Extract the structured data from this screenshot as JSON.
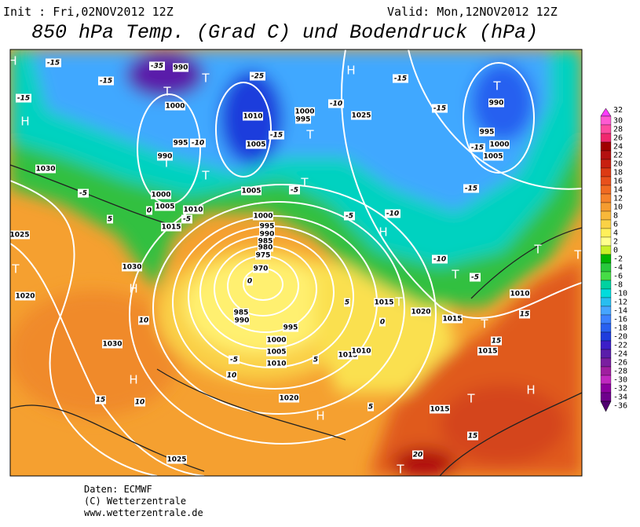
{
  "header": {
    "init": "Init : Fri,02NOV2012  12Z",
    "valid": "Valid: Mon,12NOV2012  12Z",
    "title": "850 hPa Temp. (Grad C) und Bodendruck (hPa)"
  },
  "colorbar": {
    "levels": [
      32,
      30,
      28,
      26,
      24,
      22,
      20,
      18,
      16,
      14,
      12,
      10,
      8,
      6,
      4,
      2,
      0,
      -2,
      -4,
      -6,
      -8,
      -10,
      -12,
      -14,
      -16,
      -18,
      -20,
      -22,
      -24,
      -26,
      -28,
      -30,
      -32,
      -34,
      -36
    ],
    "colors": [
      "#ff3cff",
      "#ff5ad2",
      "#ff4ba0",
      "#f0286e",
      "#a00000",
      "#b41010",
      "#c82010",
      "#dc3a14",
      "#e8501c",
      "#f06a22",
      "#f5822a",
      "#f59c30",
      "#f8b83a",
      "#fad246",
      "#fff05a",
      "#ffff8c",
      "#c8f028",
      "#00b400",
      "#28c83c",
      "#46dc46",
      "#00d2a0",
      "#00dcdc",
      "#28bef0",
      "#46a5ff",
      "#3c82ff",
      "#2860f0",
      "#1e3cdc",
      "#3c1ec8",
      "#5a1eaa",
      "#7a1ea0",
      "#a01ea0",
      "#c028c0",
      "#8c00a0",
      "#6e008c",
      "#500070"
    ]
  },
  "map": {
    "labels": [
      "1000",
      "995",
      "990",
      "985",
      "980",
      "975",
      "970",
      "985",
      "990",
      "995",
      "1000",
      "1005",
      "1010",
      "1015",
      "1020",
      "1025",
      "1030",
      "1030",
      "1030",
      "1025",
      "1020",
      "1015",
      "1010",
      "1005",
      "1000",
      "990",
      "995",
      "1000",
      "1005",
      "1010",
      "1005",
      "1000",
      "995",
      "990",
      "1025",
      "1010",
      "1015",
      "1020",
      "1015",
      "1015",
      "1000",
      "1005",
      "995",
      "990",
      "1015",
      "1010",
      "-15",
      "-15",
      "-15",
      "-35",
      "-25",
      "-15",
      "-10",
      "-10",
      "-5",
      "-5",
      "-10",
      "-15",
      "-15",
      "-15",
      "-15",
      "-5",
      "-10",
      "0",
      "5",
      "-5",
      "0",
      "5",
      "5",
      "-5",
      "10",
      "10",
      "15",
      "10",
      "15",
      "15",
      "15",
      "20",
      "5",
      "0",
      "-5",
      "H",
      "H",
      "H",
      "H",
      "H",
      "H",
      "H",
      "H",
      "T",
      "T",
      "T",
      "T",
      "T",
      "T",
      "T",
      "T",
      "T",
      "T",
      "T",
      "T",
      "T",
      "T",
      "T"
    ]
  },
  "footer": {
    "line1": "Daten: ECMWF",
    "line2": "(C) Wetterzentrale",
    "line3": "www.wetterzentrale.de"
  }
}
